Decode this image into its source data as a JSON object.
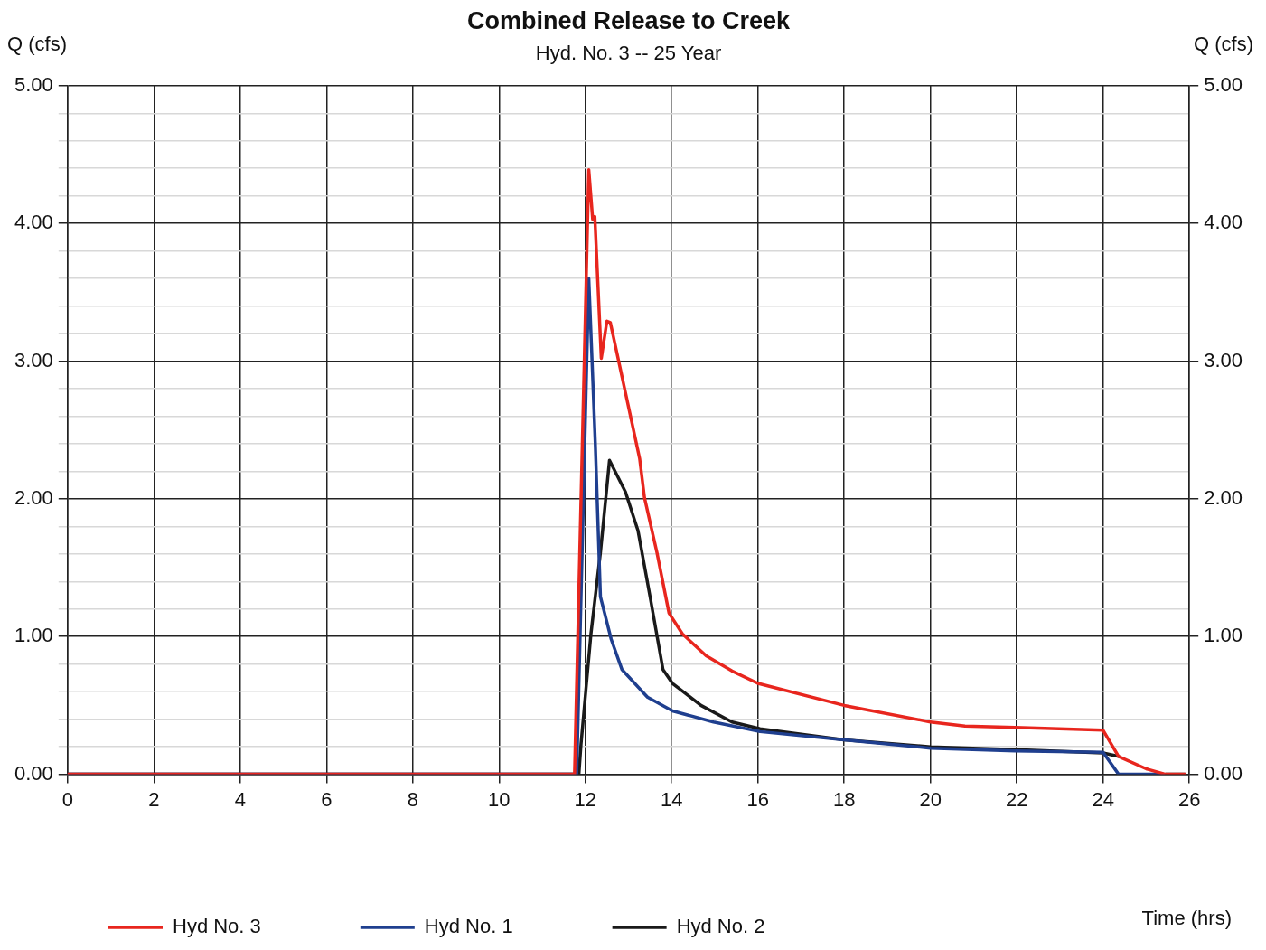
{
  "chart_data": {
    "type": "line",
    "title": "Combined Release to Creek",
    "subtitle": "Hyd. No. 3 -- 25 Year",
    "xlabel": "Time (hrs)",
    "ylabel": "Q (cfs)",
    "y2label": "Q (cfs)",
    "xlim": [
      0,
      26
    ],
    "xticks": [
      0,
      2,
      4,
      6,
      8,
      10,
      12,
      14,
      16,
      18,
      20,
      22,
      24,
      26
    ],
    "ylim": [
      0,
      5
    ],
    "yticks": [
      {
        "value": 0,
        "label": "0.00"
      },
      {
        "value": 0.2,
        "label": null
      },
      {
        "value": 0.4,
        "label": null
      },
      {
        "value": 0.6,
        "label": null
      },
      {
        "value": 0.8,
        "label": null
      },
      {
        "value": 1,
        "label": "1.00"
      },
      {
        "value": 1.2,
        "label": null
      },
      {
        "value": 1.4,
        "label": null
      },
      {
        "value": 1.6,
        "label": null
      },
      {
        "value": 1.8,
        "label": null
      },
      {
        "value": 2,
        "label": "2.00"
      },
      {
        "value": 2.2,
        "label": null
      },
      {
        "value": 2.4,
        "label": null
      },
      {
        "value": 2.6,
        "label": null
      },
      {
        "value": 2.8,
        "label": null
      },
      {
        "value": 3,
        "label": "3.00"
      },
      {
        "value": 3.2,
        "label": null
      },
      {
        "value": 3.4,
        "label": null
      },
      {
        "value": 3.6,
        "label": null
      },
      {
        "value": 3.8,
        "label": null
      },
      {
        "value": 4,
        "label": "4.00"
      },
      {
        "value": 4.2,
        "label": null
      },
      {
        "value": 4.4,
        "label": null
      },
      {
        "value": 4.6,
        "label": null
      },
      {
        "value": 4.8,
        "label": null
      },
      {
        "value": 5,
        "label": "5.00"
      }
    ],
    "y2lim": [
      0,
      5
    ],
    "y2ticks": [
      {
        "value": 0,
        "label": "0.00"
      },
      {
        "value": 1,
        "label": "1.00"
      },
      {
        "value": 2,
        "label": "2.00"
      },
      {
        "value": 3,
        "label": "3.00"
      },
      {
        "value": 4,
        "label": "4.00"
      },
      {
        "value": 5,
        "label": "5.00"
      }
    ],
    "grid": true,
    "legend": "bottom",
    "marker": "none",
    "line_style": "solid",
    "series": [
      {
        "name": "Hyd No. 3",
        "color": "#e8261e",
        "x": [
          0,
          11.75,
          12.08,
          12.17,
          12.22,
          12.37,
          12.5,
          12.58,
          13.26,
          13.37,
          13.66,
          13.94,
          14.25,
          14.8,
          15.4,
          16.0,
          18.0,
          20.0,
          20.8,
          21.96,
          24.0,
          24.36,
          25.0,
          25.45,
          25.9
        ],
        "values": [
          0,
          0,
          4.39,
          4.03,
          4.05,
          3.02,
          3.29,
          3.28,
          2.29,
          2.01,
          1.61,
          1.17,
          1.02,
          0.86,
          0.75,
          0.66,
          0.5,
          0.38,
          0.35,
          0.34,
          0.32,
          0.13,
          0.04,
          0,
          0
        ]
      },
      {
        "name": "Hyd No. 1",
        "color": "#1f3f8f",
        "x": [
          0,
          11.8,
          12.08,
          12.23,
          12.35,
          12.6,
          12.85,
          13.44,
          14.02,
          14.97,
          16.05,
          18.0,
          20.0,
          21.96,
          24.0,
          24.36,
          25.4
        ],
        "values": [
          0,
          0,
          3.6,
          2.41,
          1.29,
          0.98,
          0.76,
          0.56,
          0.46,
          0.38,
          0.31,
          0.25,
          0.19,
          0.17,
          0.16,
          0,
          0
        ]
      },
      {
        "name": "Hyd No. 2",
        "color": "#1a1a1a",
        "x": [
          0,
          11.85,
          11.9,
          12.13,
          12.35,
          12.56,
          12.93,
          13.22,
          13.5,
          13.8,
          14.02,
          14.68,
          15.4,
          16.05,
          18.0,
          20.0,
          21.96,
          24.0,
          24.36,
          25.0,
          25.45,
          25.9
        ],
        "values": [
          0,
          0,
          0.22,
          1.02,
          1.61,
          2.28,
          2.05,
          1.77,
          1.29,
          0.76,
          0.66,
          0.5,
          0.38,
          0.33,
          0.25,
          0.2,
          0.18,
          0.155,
          0.13,
          null,
          0,
          0
        ]
      }
    ]
  }
}
